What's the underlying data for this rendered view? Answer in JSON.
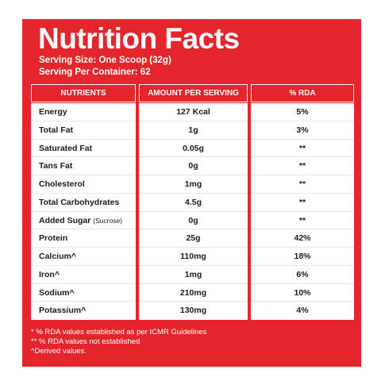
{
  "title": "Nutrition Facts",
  "serving_size": "Serving Size: One Scoop (32g)",
  "servings_per_container": "Serving Per Container: 62",
  "headers": {
    "nutrients": "NUTRIENTS",
    "amount": "AMOUNT PER SERVING",
    "rda": "% RDA"
  },
  "rows": [
    {
      "name": "Energy",
      "note": "",
      "amount": "127 Kcal",
      "rda": "5%"
    },
    {
      "name": "Total Fat",
      "note": "",
      "amount": "1g",
      "rda": "3%"
    },
    {
      "name": "Saturated Fat",
      "note": "",
      "amount": "0.05g",
      "rda": "**"
    },
    {
      "name": "Tans Fat",
      "note": "",
      "amount": "0g",
      "rda": "**"
    },
    {
      "name": "Cholesterol",
      "note": "",
      "amount": "1mg",
      "rda": "**"
    },
    {
      "name": "Total Carbohydrates",
      "note": "",
      "amount": "4.5g",
      "rda": "**"
    },
    {
      "name": "Added Sugar",
      "note": "(Sucrose)",
      "amount": "0g",
      "rda": "**"
    },
    {
      "name": "Protein",
      "note": "",
      "amount": "25g",
      "rda": "42%"
    },
    {
      "name": "Calcium^",
      "note": "",
      "amount": "110mg",
      "rda": "18%"
    },
    {
      "name": "Iron^",
      "note": "",
      "amount": "1mg",
      "rda": "6%"
    },
    {
      "name": "Sodium^",
      "note": "",
      "amount": "210mg",
      "rda": "10%"
    },
    {
      "name": "Potassium^",
      "note": "",
      "amount": "130mg",
      "rda": "4%"
    }
  ],
  "footnotes": [
    "* % RDA values established as per ICMR Guidelines",
    "** % RDA values not established",
    "^Derived values."
  ],
  "colors": {
    "brand_red": "#e4262c",
    "text_dark": "#1a1a1a"
  }
}
